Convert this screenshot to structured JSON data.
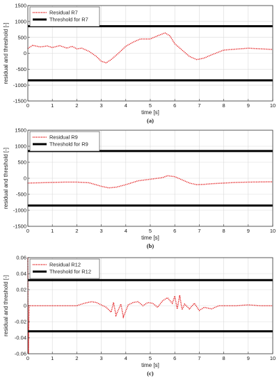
{
  "chart_data": [
    {
      "type": "line",
      "caption": "(a)",
      "xlabel": "time [s]",
      "ylabel": "residual and threshold [-]",
      "xlim": [
        0,
        10
      ],
      "ylim": [
        -1500,
        1500
      ],
      "xticks": [
        0,
        1,
        2,
        3,
        4,
        5,
        6,
        7,
        8,
        9,
        10
      ],
      "xtick_labels": [
        "0",
        "1",
        "2",
        "3",
        "4",
        "5",
        "6",
        "7",
        "8",
        "9",
        "10"
      ],
      "yticks": [
        -1500,
        -1000,
        -500,
        0,
        500,
        1000,
        1500
      ],
      "ytick_labels": [
        "-1500",
        "-1000",
        "-500",
        "0",
        "500",
        "1000",
        "1500"
      ],
      "grid": true,
      "legend_position": "top-left",
      "series": [
        {
          "name": "Residual R7",
          "style": "dotted",
          "color": "#e31a1c",
          "x": [
            0,
            0.2,
            0.5,
            0.8,
            1.0,
            1.3,
            1.6,
            1.8,
            2.0,
            2.2,
            2.5,
            2.8,
            3.0,
            3.2,
            3.4,
            3.7,
            4.0,
            4.3,
            4.6,
            5.0,
            5.3,
            5.6,
            5.8,
            6.0,
            6.3,
            6.6,
            6.9,
            7.2,
            7.5,
            8.0,
            8.5,
            9.0,
            9.5,
            10.0
          ],
          "y": [
            150,
            250,
            200,
            230,
            180,
            240,
            160,
            220,
            140,
            160,
            60,
            -100,
            -250,
            -300,
            -200,
            0,
            220,
            350,
            450,
            450,
            550,
            640,
            550,
            300,
            100,
            -100,
            -200,
            -150,
            -50,
            100,
            130,
            160,
            140,
            120
          ]
        },
        {
          "name": "Threshold for R7",
          "style": "solid",
          "color": "#000000",
          "x": [
            0,
            10
          ],
          "y": [
            850,
            850
          ]
        },
        {
          "name": "",
          "style": "solid",
          "color": "#000000",
          "x": [
            0,
            10
          ],
          "y": [
            -850,
            -850
          ]
        }
      ]
    },
    {
      "type": "line",
      "caption": "(b)",
      "xlabel": "time [s]",
      "ylabel": "residual and threshold [-]",
      "xlim": [
        0,
        10
      ],
      "ylim": [
        -1500,
        1500
      ],
      "xticks": [
        0,
        1,
        2,
        3,
        4,
        5,
        6,
        7,
        8,
        9,
        10
      ],
      "xtick_labels": [
        "0",
        "1",
        "2",
        "3",
        "4",
        "5",
        "6",
        "7",
        "8",
        "9",
        "10"
      ],
      "yticks": [
        -1500,
        -1000,
        -500,
        0,
        500,
        1000,
        1500
      ],
      "ytick_labels": [
        "-1500",
        "-1000",
        "-500",
        "0",
        "500",
        "1000",
        "1500"
      ],
      "grid": true,
      "legend_position": "top-left",
      "series": [
        {
          "name": "Residual R9",
          "style": "dotted",
          "color": "#e31a1c",
          "x": [
            0,
            0.5,
            1.0,
            1.5,
            2.0,
            2.5,
            3.0,
            3.3,
            3.6,
            4.0,
            4.5,
            5.0,
            5.5,
            5.7,
            6.0,
            6.3,
            6.6,
            6.9,
            7.2,
            7.5,
            8.0,
            8.5,
            9.0,
            9.5,
            10.0
          ],
          "y": [
            -150,
            -140,
            -130,
            -120,
            -120,
            -140,
            -250,
            -300,
            -280,
            -200,
            -80,
            -30,
            20,
            80,
            50,
            -50,
            -150,
            -200,
            -190,
            -170,
            -150,
            -130,
            -120,
            -115,
            -110
          ]
        },
        {
          "name": "Threshold for R9",
          "style": "solid",
          "color": "#000000",
          "x": [
            0,
            10
          ],
          "y": [
            850,
            850
          ]
        },
        {
          "name": "",
          "style": "solid",
          "color": "#000000",
          "x": [
            0,
            10
          ],
          "y": [
            -850,
            -850
          ]
        }
      ]
    },
    {
      "type": "line",
      "caption": "(c)",
      "xlabel": "time [s]",
      "ylabel": "residual and threshold [-]",
      "xlim": [
        0,
        10
      ],
      "ylim": [
        -0.06,
        0.06
      ],
      "xticks": [
        0,
        1,
        2,
        3,
        4,
        5,
        6,
        7,
        8,
        9,
        10
      ],
      "xtick_labels": [
        "0",
        "1",
        "2",
        "3",
        "4",
        "5",
        "6",
        "7",
        "8",
        "9",
        "10"
      ],
      "yticks": [
        -0.06,
        -0.04,
        -0.02,
        0,
        0.02,
        0.04,
        0.06
      ],
      "ytick_labels": [
        "-0.06",
        "-0.04",
        "-0.02",
        "0",
        "0.02",
        "0.04",
        "0.06"
      ],
      "grid": true,
      "legend_position": "top-left",
      "series": [
        {
          "name": "Residual R12",
          "style": "dotted",
          "color": "#e31a1c",
          "x": [
            0,
            0.02,
            0.05,
            0.1,
            0.5,
            1.0,
            1.5,
            2.0,
            2.3,
            2.6,
            2.8,
            3.0,
            3.2,
            3.4,
            3.5,
            3.6,
            3.8,
            3.9,
            4.1,
            4.3,
            4.5,
            4.7,
            4.9,
            5.1,
            5.3,
            5.5,
            5.7,
            5.9,
            6.0,
            6.1,
            6.2,
            6.3,
            6.4,
            6.6,
            6.8,
            7.0,
            7.2,
            7.5,
            7.8,
            8.0,
            8.5,
            9.0,
            9.5,
            10.0
          ],
          "y": [
            0.06,
            -0.06,
            0.0,
            0.0,
            0.0,
            0.0,
            0.0,
            0.0,
            0.003,
            0.005,
            0.004,
            0.001,
            -0.002,
            -0.008,
            0.004,
            -0.012,
            0.002,
            -0.014,
            0.001,
            0.004,
            0.005,
            0.0,
            0.004,
            0.003,
            -0.002,
            0.006,
            0.01,
            0.003,
            0.012,
            -0.004,
            0.013,
            -0.005,
            0.002,
            -0.004,
            0.003,
            -0.006,
            -0.002,
            -0.004,
            0.0,
            0.0,
            0.0,
            0.001,
            0.0,
            0.0
          ]
        },
        {
          "name": "Threshold for R12",
          "style": "solid",
          "color": "#000000",
          "x": [
            0,
            10
          ],
          "y": [
            0.032,
            0.032
          ]
        },
        {
          "name": "",
          "style": "solid",
          "color": "#000000",
          "x": [
            0,
            10
          ],
          "y": [
            -0.032,
            -0.032
          ]
        }
      ]
    }
  ]
}
